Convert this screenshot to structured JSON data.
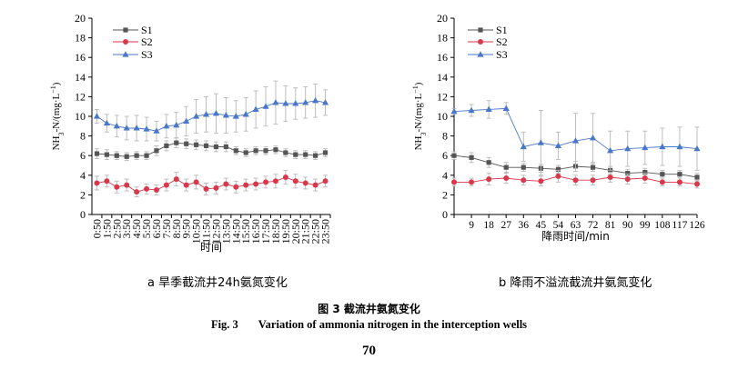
{
  "colors": {
    "S1": "#555555",
    "S2": "#d9384a",
    "S3": "#4a78c8",
    "error": "#b8b8b8"
  },
  "chart_data": [
    {
      "type": "line",
      "ylabel": "NH3-N/(mg·L⁻¹)",
      "ylabel_parts": {
        "pre": "NH",
        "sub": "3",
        "mid": "-N/(mg·L",
        "sup": "−1",
        "post": ")"
      },
      "xlabel": "时间",
      "ylim": [
        0,
        20
      ],
      "yticks": [
        "0",
        "2",
        "4",
        "6",
        "8",
        "10",
        "12",
        "14",
        "16",
        "18",
        "20"
      ],
      "categories": [
        "0:50",
        "1:50",
        "2:50",
        "3:50",
        "4:50",
        "5:50",
        "6:50",
        "7:50",
        "8:50",
        "9:50",
        "10:50",
        "11:50",
        "12:50",
        "13:50",
        "14:50",
        "15:50",
        "16:50",
        "17:50",
        "18:50",
        "19:50",
        "20:50",
        "21:50",
        "22:50",
        "23:50"
      ],
      "legend": [
        "S1",
        "S2",
        "S3"
      ],
      "series": [
        {
          "name": "S1",
          "values": [
            6.2,
            6.1,
            6.0,
            5.9,
            6.0,
            6.0,
            6.5,
            7.0,
            7.3,
            7.2,
            7.1,
            7.0,
            6.9,
            6.9,
            6.5,
            6.3,
            6.5,
            6.5,
            6.6,
            6.3,
            6.1,
            6.1,
            6.0,
            6.3
          ],
          "errors": [
            0.5,
            0.5,
            0.4,
            0.4,
            0.4,
            0.4,
            0.5,
            0.5,
            0.5,
            0.5,
            0.5,
            0.5,
            0.5,
            0.5,
            0.4,
            0.4,
            0.4,
            0.4,
            0.4,
            0.4,
            0.4,
            0.4,
            0.4,
            0.4
          ]
        },
        {
          "name": "S2",
          "values": [
            3.2,
            3.4,
            2.8,
            3.0,
            2.3,
            2.6,
            2.5,
            3.0,
            3.6,
            3.0,
            3.3,
            2.6,
            2.7,
            3.1,
            2.8,
            3.0,
            3.1,
            3.3,
            3.4,
            3.8,
            3.4,
            3.2,
            3.0,
            3.4
          ],
          "errors": [
            0.7,
            0.6,
            0.6,
            0.6,
            0.5,
            0.5,
            0.5,
            0.6,
            0.7,
            0.6,
            0.7,
            0.6,
            0.6,
            0.6,
            0.6,
            0.6,
            0.6,
            0.6,
            0.7,
            0.7,
            0.7,
            0.6,
            0.6,
            0.6
          ]
        },
        {
          "name": "S3",
          "values": [
            10.0,
            9.3,
            9.0,
            8.8,
            8.8,
            8.7,
            8.5,
            9.0,
            9.1,
            9.5,
            10.0,
            10.2,
            10.3,
            10.1,
            10.0,
            10.2,
            10.7,
            11.0,
            11.4,
            11.3,
            11.3,
            11.4,
            11.6,
            11.4
          ],
          "errors": [
            0.7,
            0.9,
            1.1,
            1.2,
            1.3,
            1.2,
            1.0,
            1.2,
            1.3,
            1.5,
            1.7,
            1.8,
            2.0,
            1.8,
            1.6,
            1.7,
            1.9,
            2.0,
            2.2,
            1.8,
            1.6,
            1.6,
            1.7,
            1.3
          ]
        }
      ]
    },
    {
      "type": "line",
      "ylabel": "NH3-N/(mg·L⁻¹)",
      "ylabel_parts": {
        "pre": "NH",
        "sub": "3",
        "mid": "-N/(mg·L",
        "sup": "−1",
        "post": ")"
      },
      "xlabel": "降雨时间/min",
      "ylim": [
        0,
        20
      ],
      "yticks": [
        "0",
        "2",
        "4",
        "6",
        "8",
        "10",
        "12",
        "14",
        "16",
        "18",
        "20"
      ],
      "categories": [
        "0",
        "9",
        "18",
        "27",
        "36",
        "45",
        "54",
        "63",
        "72",
        "81",
        "90",
        "99",
        "108",
        "117",
        "126"
      ],
      "category_labels": [
        "",
        "9",
        "18",
        "27",
        "36",
        "45",
        "54",
        "63",
        "72",
        "81",
        "90",
        "99",
        "108",
        "117",
        "126"
      ],
      "legend": [
        "S1",
        "S2",
        "S3"
      ],
      "series": [
        {
          "name": "S1",
          "values": [
            6.0,
            5.8,
            5.3,
            4.8,
            4.8,
            4.7,
            4.6,
            4.9,
            4.8,
            4.5,
            4.2,
            4.3,
            4.1,
            4.1,
            3.8
          ],
          "errors": [
            0.4,
            0.5,
            0.5,
            0.5,
            0.4,
            0.4,
            0.4,
            0.5,
            0.4,
            0.4,
            0.4,
            0.4,
            0.4,
            0.4,
            0.4
          ]
        },
        {
          "name": "S2",
          "values": [
            3.3,
            3.3,
            3.6,
            3.7,
            3.5,
            3.4,
            3.9,
            3.5,
            3.5,
            3.8,
            3.6,
            3.7,
            3.3,
            3.3,
            3.1
          ],
          "errors": [
            0.4,
            0.4,
            0.6,
            0.5,
            0.5,
            0.5,
            0.6,
            0.5,
            0.5,
            0.5,
            0.5,
            0.5,
            0.4,
            0.4,
            0.4
          ]
        },
        {
          "name": "S3",
          "values": [
            10.5,
            10.6,
            10.7,
            10.8,
            6.9,
            7.3,
            7.0,
            7.5,
            7.8,
            6.5,
            6.7,
            6.8,
            6.9,
            6.9,
            6.7
          ],
          "errors": [
            0.3,
            0.6,
            0.9,
            0.6,
            1.5,
            3.3,
            1.4,
            2.8,
            2.5,
            2.0,
            1.8,
            1.7,
            1.9,
            2.0,
            2.2
          ]
        }
      ]
    }
  ],
  "captions": {
    "a": "a  旱季截流井24h氨氮变化",
    "b": "b  降雨不溢流截流井氨氮变化"
  },
  "figure": {
    "title_cn": "图 3  截流井氨氮变化",
    "label_en": "Fig. 3",
    "title_en": "Variation of ammonia nitrogen in the interception wells"
  },
  "page_number": "70"
}
